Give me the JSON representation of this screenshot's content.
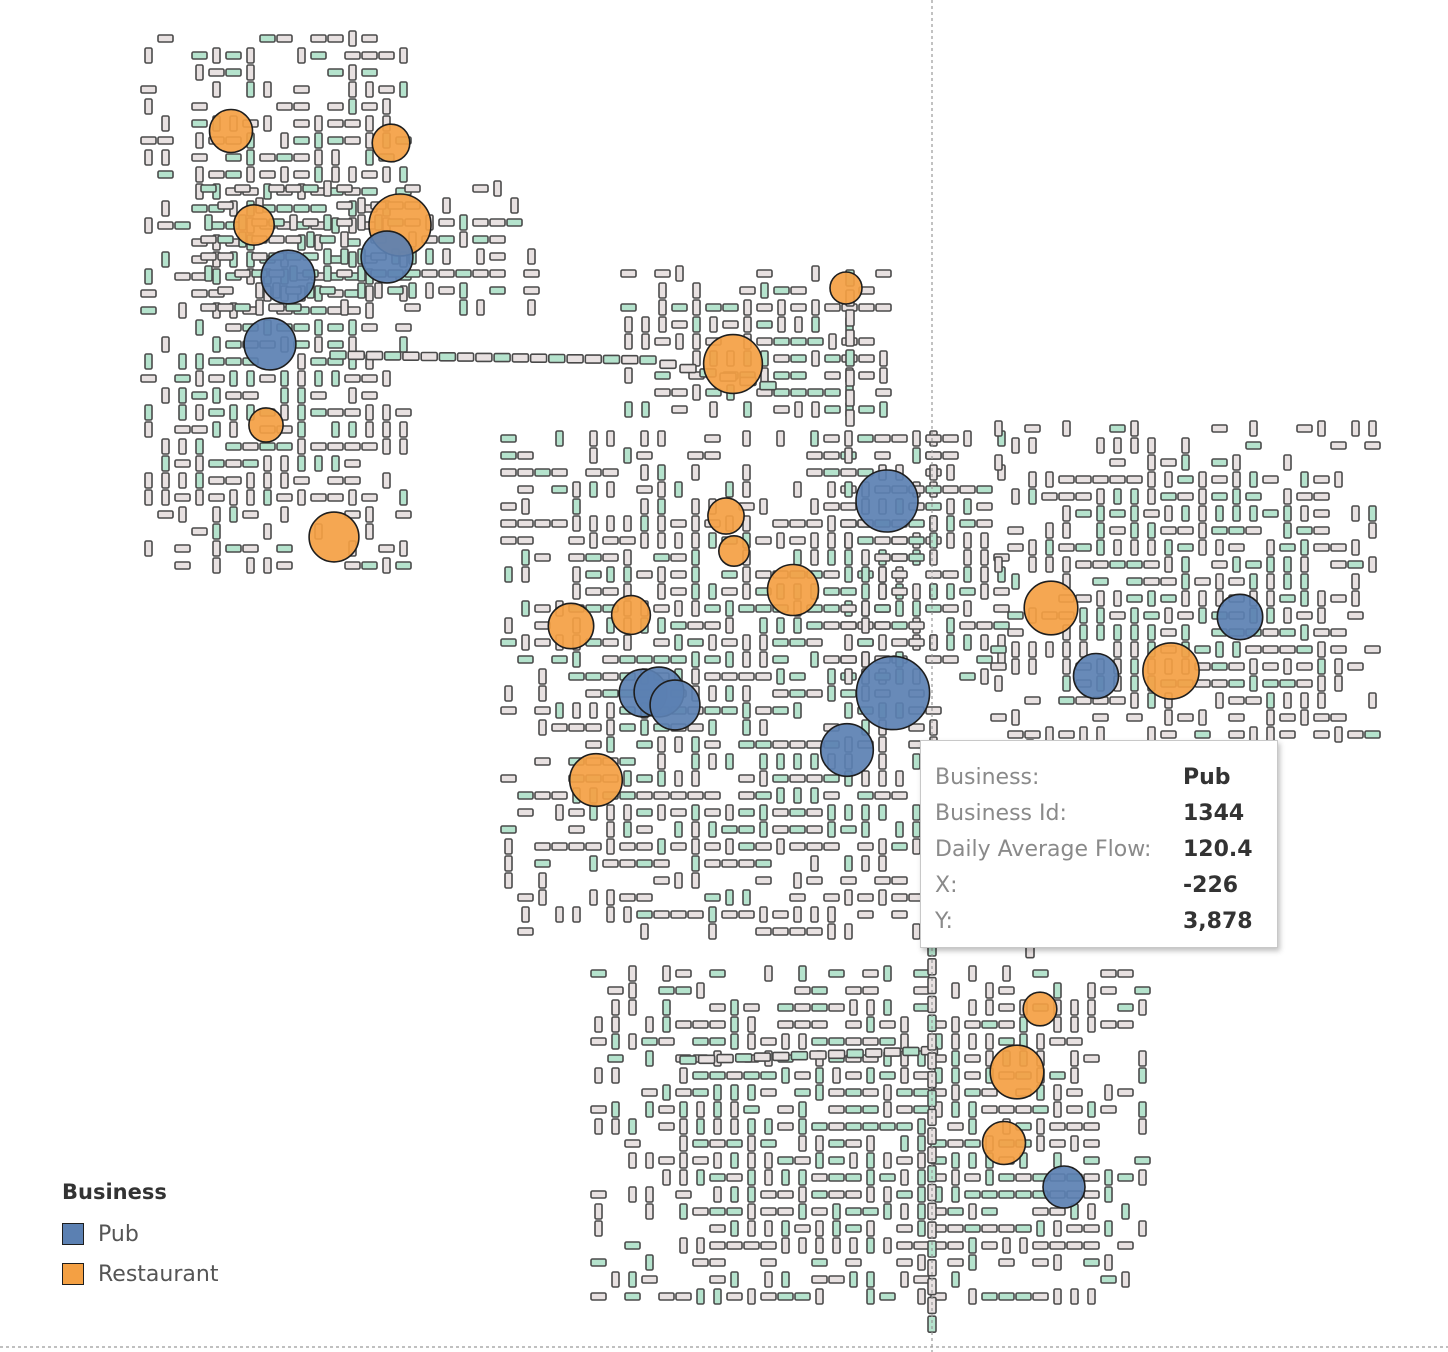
{
  "map": {
    "colors": {
      "street_block": "#e8e1e1",
      "street_block_alt": "#b5e3cd",
      "outline": "#4a4a4a"
    }
  },
  "legend": {
    "title": "Business",
    "items": [
      {
        "label": "Pub",
        "color": "#5b80b2"
      },
      {
        "label": "Restaurant",
        "color": "#f4a043"
      }
    ]
  },
  "tooltip": {
    "rows": [
      {
        "label": "Business:",
        "value": "Pub"
      },
      {
        "label": "Business Id:",
        "value": "1344"
      },
      {
        "label": "Daily Average Flow:",
        "value": "120.4"
      },
      {
        "label": "X:",
        "value": "-226"
      },
      {
        "label": "Y:",
        "value": "3,878"
      }
    ]
  },
  "chart_data": {
    "type": "scatter",
    "businesses": [
      {
        "type": "Restaurant",
        "flow": 30
      },
      {
        "type": "Restaurant",
        "flow": 20
      },
      {
        "type": "Restaurant",
        "flow": 25
      },
      {
        "type": "Restaurant",
        "flow": 80
      },
      {
        "type": "Pub",
        "flow": 55
      },
      {
        "type": "Pub",
        "flow": 50
      },
      {
        "type": "Pub",
        "flow": 50
      },
      {
        "type": "Restaurant",
        "flow": 70
      },
      {
        "type": "Restaurant",
        "flow": 12
      },
      {
        "type": "Restaurant",
        "flow": 15
      },
      {
        "type": "Restaurant",
        "flow": 45
      },
      {
        "type": "Pub",
        "flow": 80
      },
      {
        "type": "Restaurant",
        "flow": 18
      },
      {
        "type": "Restaurant",
        "flow": 10
      },
      {
        "type": "Restaurant",
        "flow": 48
      },
      {
        "type": "Restaurant",
        "flow": 35
      },
      {
        "type": "Restaurant",
        "flow": 22
      },
      {
        "type": "Pub",
        "flow": 40
      },
      {
        "type": "Pub",
        "flow": 45
      },
      {
        "type": "Pub",
        "flow": 45
      },
      {
        "type": "Pub",
        "flow": 120.4
      },
      {
        "type": "Pub",
        "flow": 52
      },
      {
        "type": "Restaurant",
        "flow": 52
      },
      {
        "type": "Restaurant",
        "flow": 55
      },
      {
        "type": "Pub",
        "flow": 35
      },
      {
        "type": "Pub",
        "flow": 34
      },
      {
        "type": "Restaurant",
        "flow": 62
      },
      {
        "type": "Restaurant",
        "flow": 14
      },
      {
        "type": "Restaurant",
        "flow": 55
      },
      {
        "type": "Restaurant",
        "flow": 30
      },
      {
        "type": "Pub",
        "flow": 28
      }
    ]
  }
}
